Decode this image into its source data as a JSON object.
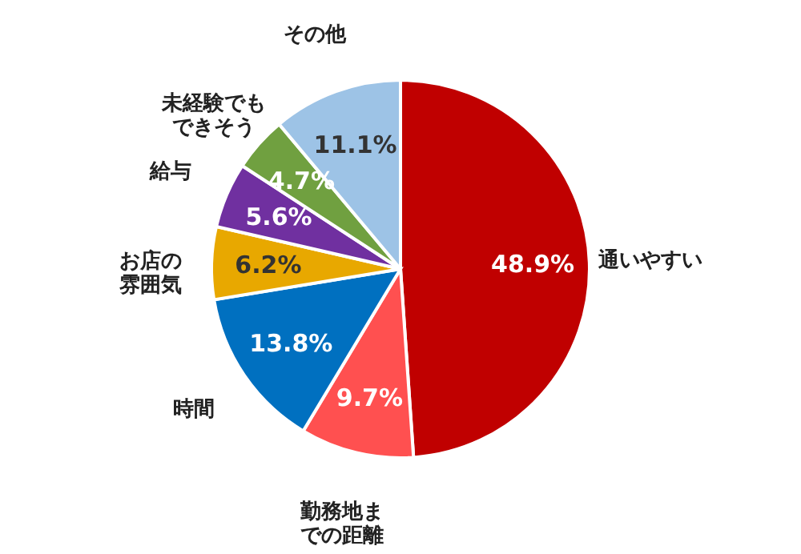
{
  "chart_data": {
    "type": "pie",
    "categories": [
      "通いやすい",
      "勤務地までの距離",
      "時間",
      "お店の雰囲気",
      "給与",
      "未経験でもできそう",
      "その他"
    ],
    "values": [
      48.9,
      9.7,
      13.8,
      6.2,
      5.6,
      4.7,
      11.1
    ],
    "value_labels": [
      "48.9%",
      "9.7%",
      "13.8%",
      "6.2%",
      "5.6%",
      "4.7%",
      "11.1%"
    ],
    "colors": [
      "#c00000",
      "#ff5050",
      "#0070c0",
      "#e8a800",
      "#7030a0",
      "#70a040",
      "#9dc3e6"
    ]
  }
}
